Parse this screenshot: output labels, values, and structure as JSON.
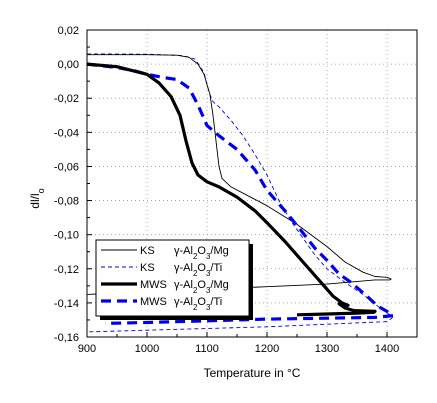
{
  "chart_data": {
    "type": "line",
    "xlabel": "Temperature  in °C",
    "ylabel": "dl/l",
    "ylabel_sub": "o",
    "xlim": [
      900,
      1450
    ],
    "ylim": [
      -0.16,
      0.02
    ],
    "x_ticks": [
      {
        "v": 900,
        "label": "900"
      },
      {
        "v": 1000,
        "label": "1000"
      },
      {
        "v": 1100,
        "label": "1100"
      },
      {
        "v": 1200,
        "label": "1200"
      },
      {
        "v": 1300,
        "label": "1300"
      },
      {
        "v": 1400,
        "label": "1400"
      }
    ],
    "y_ticks": [
      {
        "v": 0.02,
        "label": "0,02"
      },
      {
        "v": 0.0,
        "label": "0,00"
      },
      {
        "v": -0.02,
        "label": "-0,02"
      },
      {
        "v": -0.04,
        "label": "-0,04"
      },
      {
        "v": -0.06,
        "label": "-0,06"
      },
      {
        "v": -0.08,
        "label": "-0,08"
      },
      {
        "v": -0.1,
        "label": "-0,10"
      },
      {
        "v": -0.12,
        "label": "-0,12"
      },
      {
        "v": -0.14,
        "label": "-0,14"
      },
      {
        "v": -0.16,
        "label": "-0,16"
      }
    ],
    "grid": "dotted",
    "legend_position": "bottom-left",
    "series": [
      {
        "method": "KS",
        "material_parts": [
          "γ-Al",
          "2",
          "O",
          "3",
          "/Mg"
        ],
        "style": "thin-solid",
        "color": "#000000",
        "points": [
          [
            900,
            0.0055
          ],
          [
            950,
            0.0055
          ],
          [
            1000,
            0.0055
          ],
          [
            1050,
            0.0052
          ],
          [
            1070,
            0.004
          ],
          [
            1085,
            0.0
          ],
          [
            1095,
            -0.006
          ],
          [
            1105,
            -0.018
          ],
          [
            1110,
            -0.03
          ],
          [
            1115,
            -0.045
          ],
          [
            1120,
            -0.06
          ],
          [
            1125,
            -0.067
          ],
          [
            1140,
            -0.072
          ],
          [
            1200,
            -0.083
          ],
          [
            1250,
            -0.094
          ],
          [
            1300,
            -0.107
          ],
          [
            1330,
            -0.116
          ],
          [
            1360,
            -0.122
          ],
          [
            1380,
            -0.1245
          ],
          [
            1400,
            -0.125
          ],
          [
            1407,
            -0.126
          ],
          [
            1405,
            -0.1265
          ],
          [
            1380,
            -0.1265
          ],
          [
            1300,
            -0.129
          ],
          [
            1200,
            -0.1305
          ],
          [
            1100,
            -0.132
          ],
          [
            1000,
            -0.1335
          ],
          [
            900,
            -0.135
          ]
        ]
      },
      {
        "method": "KS",
        "material_parts": [
          "γ-Al",
          "2",
          "O",
          "3",
          "/Ti"
        ],
        "style": "thin-dashed",
        "color": "#0000ee",
        "points": [
          [
            900,
            0.006
          ],
          [
            1000,
            0.0058
          ],
          [
            1060,
            0.005
          ],
          [
            1080,
            0.003
          ],
          [
            1095,
            -0.005
          ],
          [
            1100,
            -0.012
          ],
          [
            1105,
            -0.018
          ],
          [
            1110,
            -0.022
          ],
          [
            1120,
            -0.025
          ],
          [
            1140,
            -0.033
          ],
          [
            1160,
            -0.042
          ],
          [
            1180,
            -0.053
          ],
          [
            1200,
            -0.065
          ],
          [
            1220,
            -0.08
          ],
          [
            1240,
            -0.092
          ],
          [
            1260,
            -0.102
          ],
          [
            1280,
            -0.112
          ],
          [
            1300,
            -0.12
          ],
          [
            1330,
            -0.128
          ],
          [
            1360,
            -0.135
          ],
          [
            1385,
            -0.142
          ],
          [
            1400,
            -0.146
          ],
          [
            1410,
            -0.148
          ],
          [
            1408,
            -0.149
          ],
          [
            1400,
            -0.151
          ],
          [
            1300,
            -0.1525
          ],
          [
            1200,
            -0.154
          ],
          [
            1100,
            -0.155
          ],
          [
            1000,
            -0.156
          ],
          [
            900,
            -0.157
          ]
        ]
      },
      {
        "method": "MWS",
        "material_parts": [
          "γ-Al",
          "2",
          "O",
          "3",
          "/Mg"
        ],
        "style": "thick-solid",
        "color": "#000000",
        "points": [
          [
            900,
            0.0
          ],
          [
            950,
            -0.0015
          ],
          [
            1000,
            -0.006
          ],
          [
            1020,
            -0.011
          ],
          [
            1040,
            -0.019
          ],
          [
            1055,
            -0.03
          ],
          [
            1065,
            -0.045
          ],
          [
            1075,
            -0.058
          ],
          [
            1085,
            -0.065
          ],
          [
            1100,
            -0.069
          ],
          [
            1120,
            -0.072
          ],
          [
            1150,
            -0.078
          ],
          [
            1180,
            -0.086
          ],
          [
            1200,
            -0.093
          ],
          [
            1230,
            -0.104
          ],
          [
            1260,
            -0.116
          ],
          [
            1290,
            -0.128
          ],
          [
            1310,
            -0.136
          ],
          [
            1325,
            -0.14
          ],
          [
            1335,
            -0.1415
          ],
          [
            1320,
            -0.1405
          ],
          [
            1330,
            -0.143
          ],
          [
            1345,
            -0.1445
          ],
          [
            1380,
            -0.145
          ],
          [
            1378,
            -0.1455
          ],
          [
            1350,
            -0.146
          ],
          [
            1300,
            -0.1465
          ],
          [
            1250,
            -0.147
          ]
        ]
      },
      {
        "method": "MWS",
        "material_parts": [
          "γ-Al",
          "2",
          "O",
          "3",
          "/Ti"
        ],
        "style": "thick-dashed",
        "color": "#0000ee",
        "points": [
          [
            900,
            0.0
          ],
          [
            950,
            -0.002
          ],
          [
            980,
            -0.004
          ],
          [
            1000,
            -0.006
          ],
          [
            1030,
            -0.008
          ],
          [
            1050,
            -0.009
          ],
          [
            1070,
            -0.014
          ],
          [
            1085,
            -0.024
          ],
          [
            1100,
            -0.036
          ],
          [
            1120,
            -0.042
          ],
          [
            1150,
            -0.05
          ],
          [
            1180,
            -0.062
          ],
          [
            1200,
            -0.074
          ],
          [
            1230,
            -0.086
          ],
          [
            1260,
            -0.099
          ],
          [
            1280,
            -0.108
          ],
          [
            1300,
            -0.115
          ],
          [
            1320,
            -0.123
          ],
          [
            1340,
            -0.128
          ],
          [
            1360,
            -0.134
          ],
          [
            1385,
            -0.142
          ],
          [
            1400,
            -0.145
          ],
          [
            1410,
            -0.1475
          ],
          [
            1380,
            -0.1485
          ],
          [
            1300,
            -0.149
          ],
          [
            1200,
            -0.1495
          ],
          [
            1100,
            -0.1505
          ],
          [
            1000,
            -0.1515
          ],
          [
            930,
            -0.152
          ]
        ]
      }
    ]
  }
}
